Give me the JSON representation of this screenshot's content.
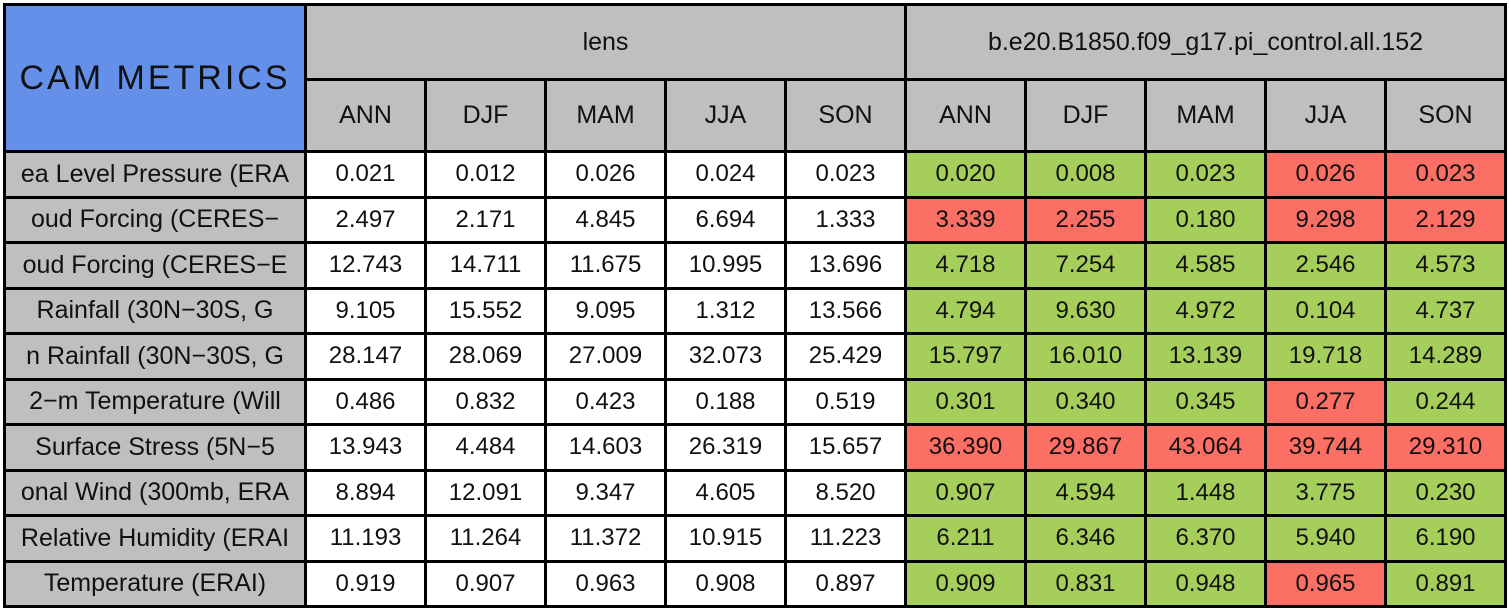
{
  "colors": {
    "title_bg": "#6590EA",
    "header_bg": "#BFBFBF",
    "green_cell": "#A6CE5B",
    "red_cell": "#FB6F65",
    "border": "#000000",
    "value_bg": "#FFFFFF"
  },
  "chart_data": {
    "type": "table",
    "title": "CAM METRICS",
    "column_groups": [
      "lens",
      "b.e20.B1850.f09_g17.pi_control.all.152"
    ],
    "seasons": [
      "ANN",
      "DJF",
      "MAM",
      "JJA",
      "SON"
    ],
    "rows": [
      {
        "label": "ea Level Pressure (ERA",
        "lens": [
          "0.021",
          "0.012",
          "0.026",
          "0.024",
          "0.023"
        ],
        "control": [
          "0.020",
          "0.008",
          "0.023",
          "0.026",
          "0.023"
        ],
        "flags": [
          "green",
          "green",
          "green",
          "red",
          "red"
        ]
      },
      {
        "label": "oud Forcing (CERES−",
        "lens": [
          "2.497",
          "2.171",
          "4.845",
          "6.694",
          "1.333"
        ],
        "control": [
          "3.339",
          "2.255",
          "0.180",
          "9.298",
          "2.129"
        ],
        "flags": [
          "red",
          "red",
          "green",
          "red",
          "red"
        ]
      },
      {
        "label": "oud Forcing (CERES−E",
        "lens": [
          "12.743",
          "14.711",
          "11.675",
          "10.995",
          "13.696"
        ],
        "control": [
          "4.718",
          "7.254",
          "4.585",
          "2.546",
          "4.573"
        ],
        "flags": [
          "green",
          "green",
          "green",
          "green",
          "green"
        ]
      },
      {
        "label": "Rainfall (30N−30S, G",
        "lens": [
          "9.105",
          "15.552",
          "9.095",
          "1.312",
          "13.566"
        ],
        "control": [
          "4.794",
          "9.630",
          "4.972",
          "0.104",
          "4.737"
        ],
        "flags": [
          "green",
          "green",
          "green",
          "green",
          "green"
        ]
      },
      {
        "label": "n Rainfall (30N−30S, G",
        "lens": [
          "28.147",
          "28.069",
          "27.009",
          "32.073",
          "25.429"
        ],
        "control": [
          "15.797",
          "16.010",
          "13.139",
          "19.718",
          "14.289"
        ],
        "flags": [
          "green",
          "green",
          "green",
          "green",
          "green"
        ]
      },
      {
        "label": "2−m Temperature (Will",
        "lens": [
          "0.486",
          "0.832",
          "0.423",
          "0.188",
          "0.519"
        ],
        "control": [
          "0.301",
          "0.340",
          "0.345",
          "0.277",
          "0.244"
        ],
        "flags": [
          "green",
          "green",
          "green",
          "red",
          "green"
        ]
      },
      {
        "label": "Surface Stress (5N−5",
        "lens": [
          "13.943",
          "4.484",
          "14.603",
          "26.319",
          "15.657"
        ],
        "control": [
          "36.390",
          "29.867",
          "43.064",
          "39.744",
          "29.310"
        ],
        "flags": [
          "red",
          "red",
          "red",
          "red",
          "red"
        ]
      },
      {
        "label": "onal Wind (300mb, ERA",
        "lens": [
          "8.894",
          "12.091",
          "9.347",
          "4.605",
          "8.520"
        ],
        "control": [
          "0.907",
          "4.594",
          "1.448",
          "3.775",
          "0.230"
        ],
        "flags": [
          "green",
          "green",
          "green",
          "green",
          "green"
        ]
      },
      {
        "label": "Relative Humidity (ERAI",
        "lens": [
          "11.193",
          "11.264",
          "11.372",
          "10.915",
          "11.223"
        ],
        "control": [
          "6.211",
          "6.346",
          "6.370",
          "5.940",
          "6.190"
        ],
        "flags": [
          "green",
          "green",
          "green",
          "green",
          "green"
        ]
      },
      {
        "label": "Temperature (ERAI)",
        "lens": [
          "0.919",
          "0.907",
          "0.963",
          "0.908",
          "0.897"
        ],
        "control": [
          "0.909",
          "0.831",
          "0.948",
          "0.965",
          "0.891"
        ],
        "flags": [
          "green",
          "green",
          "green",
          "red",
          "green"
        ]
      }
    ]
  }
}
